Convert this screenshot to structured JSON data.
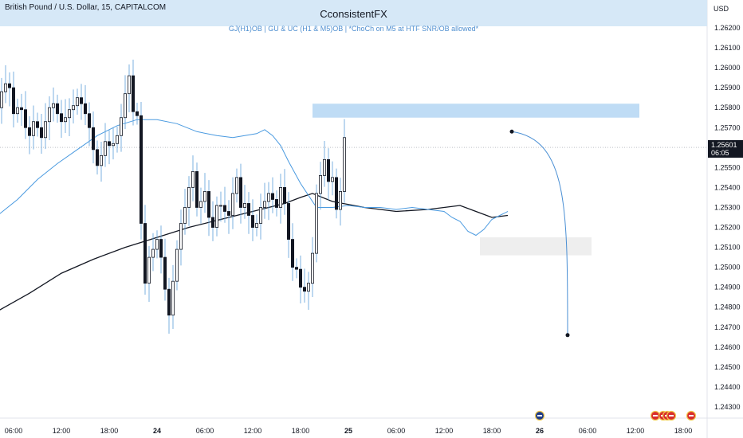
{
  "header": {
    "symbol_title": "British Pound / U.S. Dollar, 15, CAPITALCOM",
    "banner_title": "CconsistentFX",
    "banner_subtitle": "GJ(H1)OB  |  GU & UC (H1 & M5)OB  |  *ChoCh on M5 at HTF SNR/OB allowed*",
    "currency": "USD"
  },
  "price_label": {
    "price": "1.25601",
    "countdown": "06:05"
  },
  "colors": {
    "up": "#ffffff",
    "down": "#131722",
    "wick": "#5b9fd8",
    "ma_fast": "#4a9ae0",
    "ma_slow": "#131722",
    "zone": "#bfdcf5",
    "zone_grey": "#eeeeee",
    "projection": "#4a8fd4"
  },
  "chart_data": {
    "type": "candlestick",
    "symbol": "GBPUSD",
    "timeframe": "15",
    "ylim": [
      1.2425,
      1.2636
    ],
    "y_ticks": [
      1.243,
      1.244,
      1.245,
      1.246,
      1.247,
      1.248,
      1.249,
      1.25,
      1.251,
      1.252,
      1.253,
      1.254,
      1.255,
      1.257,
      1.258,
      1.259,
      1.26,
      1.261,
      1.262
    ],
    "y_tick_labels": [
      "1.24300",
      "1.24400",
      "1.24500",
      "1.24600",
      "1.24700",
      "1.24800",
      "1.24900",
      "1.25000",
      "1.25100",
      "1.25200",
      "1.25300",
      "1.25400",
      "1.25500",
      "1.25700",
      "1.25800",
      "1.25900",
      "1.26000",
      "1.26100",
      "1.26200"
    ],
    "x_ticks": [
      "06:00",
      "12:00",
      "18:00",
      "24",
      "06:00",
      "12:00",
      "18:00",
      "25",
      "06:00",
      "12:00",
      "18:00",
      "26",
      "06:00",
      "12:00",
      "18:00"
    ],
    "x_tick_hours": [
      6,
      12,
      18,
      24,
      30,
      36,
      42,
      48,
      54,
      60,
      66,
      72,
      78,
      84,
      90
    ],
    "current_price": 1.25601,
    "close_series": [
      1.2545,
      1.2553,
      1.2561,
      1.2569,
      1.2574,
      1.258,
      1.2588,
      1.2592,
      1.259,
      1.2577,
      1.258,
      1.2579,
      1.257,
      1.2566,
      1.2573,
      1.257,
      1.2565,
      1.2573,
      1.258,
      1.2582,
      1.2577,
      1.2573,
      1.2575,
      1.2579,
      1.2581,
      1.2585,
      1.2582,
      1.2577,
      1.257,
      1.2559,
      1.2551,
      1.2556,
      1.2563,
      1.2561,
      1.2562,
      1.2566,
      1.2575,
      1.2587,
      1.2596,
      1.2578,
      1.2576,
      1.2522,
      1.2492,
      1.2505,
      1.2509,
      1.2514,
      1.2505,
      1.2489,
      1.2476,
      1.2493,
      1.2509,
      1.2522,
      1.253,
      1.254,
      1.2548,
      1.253,
      1.2533,
      1.2538,
      1.2525,
      1.252,
      1.2531,
      1.2531,
      1.2528,
      1.2526,
      1.2537,
      1.2545,
      1.253,
      1.2532,
      1.2526,
      1.252,
      1.2522,
      1.253,
      1.2533,
      1.2537,
      1.2534,
      1.253,
      1.254,
      1.2532,
      1.2514,
      1.25,
      1.2499,
      1.249,
      1.2488,
      1.2492,
      1.2507,
      1.2537,
      1.2546,
      1.2554,
      1.2543,
      1.2545,
      1.2529,
      1.2538,
      1.2565
    ],
    "x_hour_start": 1.5,
    "x_hour_step": 0.5,
    "ma_fast": [
      1.2514,
      1.2526,
      1.2534,
      1.2544,
      1.2552,
      1.2559,
      1.2566,
      1.2571,
      1.2574,
      1.2574,
      1.2572,
      1.2568,
      1.2566,
      1.2565,
      1.2566,
      1.2567,
      1.2569,
      1.2566,
      1.2561,
      1.2553,
      1.2542,
      1.253,
      1.253,
      1.2531,
      1.253,
      1.253,
      1.2529,
      1.253,
      1.2529,
      1.2528,
      1.2525,
      1.2523,
      1.2518,
      1.2516,
      1.2519,
      1.2524,
      1.2526,
      1.2528
    ],
    "ma_fast_hours": [
      1.5,
      4,
      6.5,
      9,
      11.5,
      14,
      16.5,
      19,
      21.5,
      24,
      26.5,
      29,
      31.5,
      33.5,
      35,
      36.5,
      37.5,
      38.5,
      39.5,
      40.5,
      42,
      44,
      46,
      48,
      50,
      52,
      54,
      56,
      58,
      60,
      61,
      62,
      63,
      64,
      65,
      66,
      67,
      68
    ],
    "ma_slow": [
      1.2467,
      1.2478,
      1.2487,
      1.2497,
      1.2504,
      1.251,
      1.2515,
      1.252,
      1.2524,
      1.2528,
      1.2532,
      1.2535,
      1.2537,
      1.2533,
      1.253,
      1.2528,
      1.2529,
      1.2531,
      1.2528,
      1.2525,
      1.2526
    ],
    "ma_slow_hours": [
      0,
      4,
      8,
      12,
      16,
      20,
      24,
      28,
      32,
      36,
      40,
      42,
      43.5,
      46,
      50,
      54,
      58,
      62,
      64,
      66,
      68
    ],
    "zones": [
      {
        "name": "supply-zone",
        "hour_from": 43.5,
        "hour_to": 84.5,
        "price_from": 1.2575,
        "price_to": 1.2582
      },
      {
        "name": "demand-zone",
        "hour_from": 64.5,
        "hour_to": 78.5,
        "price_from": 1.2506,
        "price_to": 1.2515
      }
    ],
    "projection": {
      "from_hour": 68.5,
      "from_price": 1.2568,
      "to_hour": 75.5,
      "to_price": 1.2466
    },
    "event_markers": [
      {
        "name": "uk-flag-icon",
        "hour": 72
      },
      {
        "name": "us-flag-icon",
        "hour": 86.5
      },
      {
        "name": "us-flag-icon",
        "hour": 87.5
      },
      {
        "name": "us-flag-icon",
        "hour": 88
      },
      {
        "name": "us-flag-icon",
        "hour": 88.5
      },
      {
        "name": "eu-us-flag-icon",
        "hour": 91
      }
    ]
  }
}
